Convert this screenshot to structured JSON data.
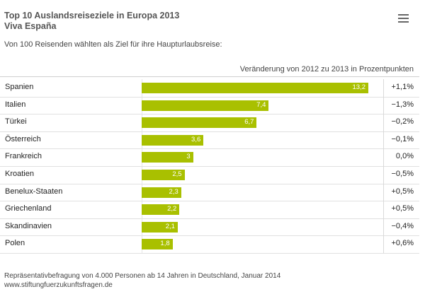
{
  "title": "Top 10 Auslandsreiseziele in Europa 2013",
  "subtitle": "Viva España",
  "intro": "Von 100 Reisenden wählten als Ziel für ihre Haupturlaubsreise:",
  "column_header": "Veränderung von 2012 zu 2013 in Prozentpunkten",
  "menu_icon": "hamburger-menu-icon",
  "bar_color": "#a9c000",
  "footer": {
    "note": "Repräsentativbefragung von 4.000 Personen ab 14 Jahren in Deutschland, Januar 2014",
    "source": "www.stiftungfuerzukunftsfragen.de"
  },
  "chart_data": {
    "type": "bar",
    "orientation": "horizontal",
    "title": "Top 10 Auslandsreiseziele in Europa 2013",
    "subtitle": "Viva España",
    "categories": [
      "Spanien",
      "Italien",
      "Türkei",
      "Österreich",
      "Frankreich",
      "Kroatien",
      "Benelux-Staaten",
      "Griechenland",
      "Skandinavien",
      "Polen"
    ],
    "values": [
      13.2,
      7.4,
      6.7,
      3.6,
      3,
      2.5,
      2.3,
      2.2,
      2.1,
      1.8
    ],
    "value_labels": [
      "13,2",
      "7,4",
      "6,7",
      "3,6",
      "3",
      "2,5",
      "2,3",
      "2,2",
      "2,1",
      "1,8"
    ],
    "change_labels": [
      "+1,1%",
      "−1,3%",
      "−0,2%",
      "−0,1%",
      "0,0%",
      "−0,5%",
      "+0,5%",
      "+0,5%",
      "−0,4%",
      "+0,6%"
    ],
    "xlim": [
      0,
      13.2
    ],
    "grid": false,
    "legend": "none"
  }
}
